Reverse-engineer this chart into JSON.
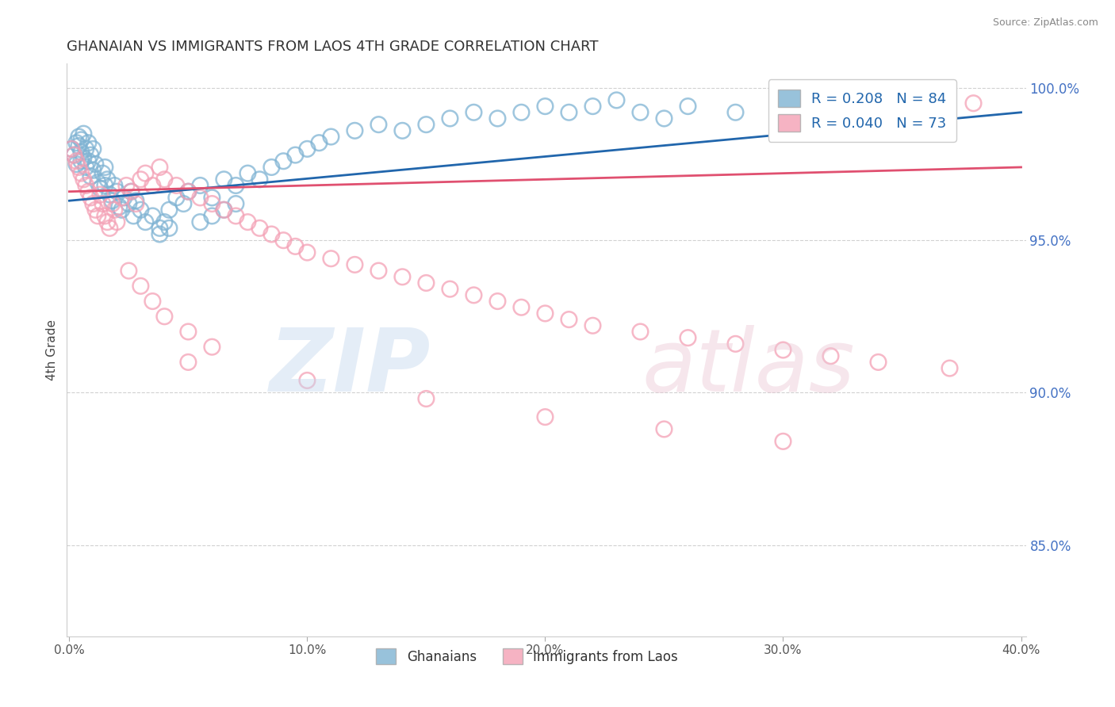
{
  "title": "GHANAIAN VS IMMIGRANTS FROM LAOS 4TH GRADE CORRELATION CHART",
  "source_text": "Source: ZipAtlas.com",
  "ylabel": "4th Grade",
  "xlim": [
    -0.001,
    0.402
  ],
  "ylim": [
    0.82,
    1.008
  ],
  "ytick_labels": [
    "85.0%",
    "90.0%",
    "95.0%",
    "100.0%"
  ],
  "ytick_values": [
    0.85,
    0.9,
    0.95,
    1.0
  ],
  "xtick_labels": [
    "0.0%",
    "10.0%",
    "20.0%",
    "30.0%",
    "40.0%"
  ],
  "xtick_values": [
    0.0,
    0.1,
    0.2,
    0.3,
    0.4
  ],
  "series1_label": "Ghanaians",
  "series2_label": "Immigrants from Laos",
  "series1_color": "#7fb3d3",
  "series2_color": "#f4a0b5",
  "trendline1_color": "#2166ac",
  "trendline2_color": "#e05070",
  "R1": 0.208,
  "N1": 84,
  "R2": 0.04,
  "N2": 73,
  "blue_trendline_x": [
    0.0,
    0.4
  ],
  "blue_trendline_y": [
    0.963,
    0.992
  ],
  "pink_trendline_x": [
    0.0,
    0.4
  ],
  "pink_trendline_y": [
    0.966,
    0.974
  ],
  "blue_x": [
    0.001,
    0.002,
    0.003,
    0.003,
    0.004,
    0.004,
    0.005,
    0.005,
    0.005,
    0.006,
    0.006,
    0.007,
    0.007,
    0.008,
    0.008,
    0.009,
    0.009,
    0.01,
    0.01,
    0.011,
    0.012,
    0.013,
    0.014,
    0.015,
    0.015,
    0.016,
    0.017,
    0.018,
    0.019,
    0.02,
    0.021,
    0.022,
    0.023,
    0.025,
    0.026,
    0.027,
    0.028,
    0.03,
    0.032,
    0.035,
    0.038,
    0.04,
    0.042,
    0.045,
    0.048,
    0.05,
    0.055,
    0.06,
    0.065,
    0.07,
    0.075,
    0.08,
    0.085,
    0.09,
    0.095,
    0.1,
    0.105,
    0.11,
    0.12,
    0.13,
    0.14,
    0.15,
    0.16,
    0.17,
    0.18,
    0.19,
    0.2,
    0.21,
    0.22,
    0.23,
    0.24,
    0.25,
    0.26,
    0.28,
    0.3,
    0.32,
    0.34,
    0.36,
    0.038,
    0.042,
    0.055,
    0.06,
    0.065,
    0.07
  ],
  "blue_y": [
    0.98,
    0.978,
    0.982,
    0.975,
    0.981,
    0.984,
    0.976,
    0.979,
    0.983,
    0.977,
    0.985,
    0.974,
    0.98,
    0.976,
    0.982,
    0.971,
    0.978,
    0.973,
    0.98,
    0.975,
    0.969,
    0.967,
    0.972,
    0.968,
    0.974,
    0.97,
    0.965,
    0.963,
    0.968,
    0.966,
    0.961,
    0.96,
    0.964,
    0.962,
    0.966,
    0.958,
    0.963,
    0.96,
    0.956,
    0.958,
    0.954,
    0.956,
    0.96,
    0.964,
    0.962,
    0.966,
    0.968,
    0.964,
    0.97,
    0.968,
    0.972,
    0.97,
    0.974,
    0.976,
    0.978,
    0.98,
    0.982,
    0.984,
    0.986,
    0.988,
    0.986,
    0.988,
    0.99,
    0.992,
    0.99,
    0.992,
    0.994,
    0.992,
    0.994,
    0.996,
    0.992,
    0.99,
    0.994,
    0.992,
    0.99,
    0.992,
    0.994,
    0.996,
    0.952,
    0.954,
    0.956,
    0.958,
    0.96,
    0.962
  ],
  "pink_x": [
    0.001,
    0.002,
    0.003,
    0.004,
    0.005,
    0.006,
    0.007,
    0.008,
    0.009,
    0.01,
    0.011,
    0.012,
    0.013,
    0.014,
    0.015,
    0.016,
    0.017,
    0.018,
    0.019,
    0.02,
    0.022,
    0.024,
    0.026,
    0.028,
    0.03,
    0.032,
    0.035,
    0.038,
    0.04,
    0.045,
    0.05,
    0.055,
    0.06,
    0.065,
    0.07,
    0.075,
    0.08,
    0.085,
    0.09,
    0.095,
    0.1,
    0.11,
    0.12,
    0.13,
    0.14,
    0.15,
    0.16,
    0.17,
    0.18,
    0.19,
    0.2,
    0.21,
    0.22,
    0.24,
    0.26,
    0.28,
    0.3,
    0.32,
    0.34,
    0.37,
    0.025,
    0.03,
    0.035,
    0.04,
    0.05,
    0.06,
    0.1,
    0.15,
    0.2,
    0.25,
    0.3,
    0.38,
    0.05
  ],
  "pink_y": [
    0.98,
    0.978,
    0.976,
    0.974,
    0.972,
    0.97,
    0.968,
    0.966,
    0.964,
    0.962,
    0.96,
    0.958,
    0.965,
    0.962,
    0.958,
    0.956,
    0.954,
    0.962,
    0.96,
    0.956,
    0.964,
    0.968,
    0.966,
    0.962,
    0.97,
    0.972,
    0.968,
    0.974,
    0.97,
    0.968,
    0.966,
    0.964,
    0.962,
    0.96,
    0.958,
    0.956,
    0.954,
    0.952,
    0.95,
    0.948,
    0.946,
    0.944,
    0.942,
    0.94,
    0.938,
    0.936,
    0.934,
    0.932,
    0.93,
    0.928,
    0.926,
    0.924,
    0.922,
    0.92,
    0.918,
    0.916,
    0.914,
    0.912,
    0.91,
    0.908,
    0.94,
    0.935,
    0.93,
    0.925,
    0.92,
    0.915,
    0.904,
    0.898,
    0.892,
    0.888,
    0.884,
    0.995,
    0.91
  ]
}
